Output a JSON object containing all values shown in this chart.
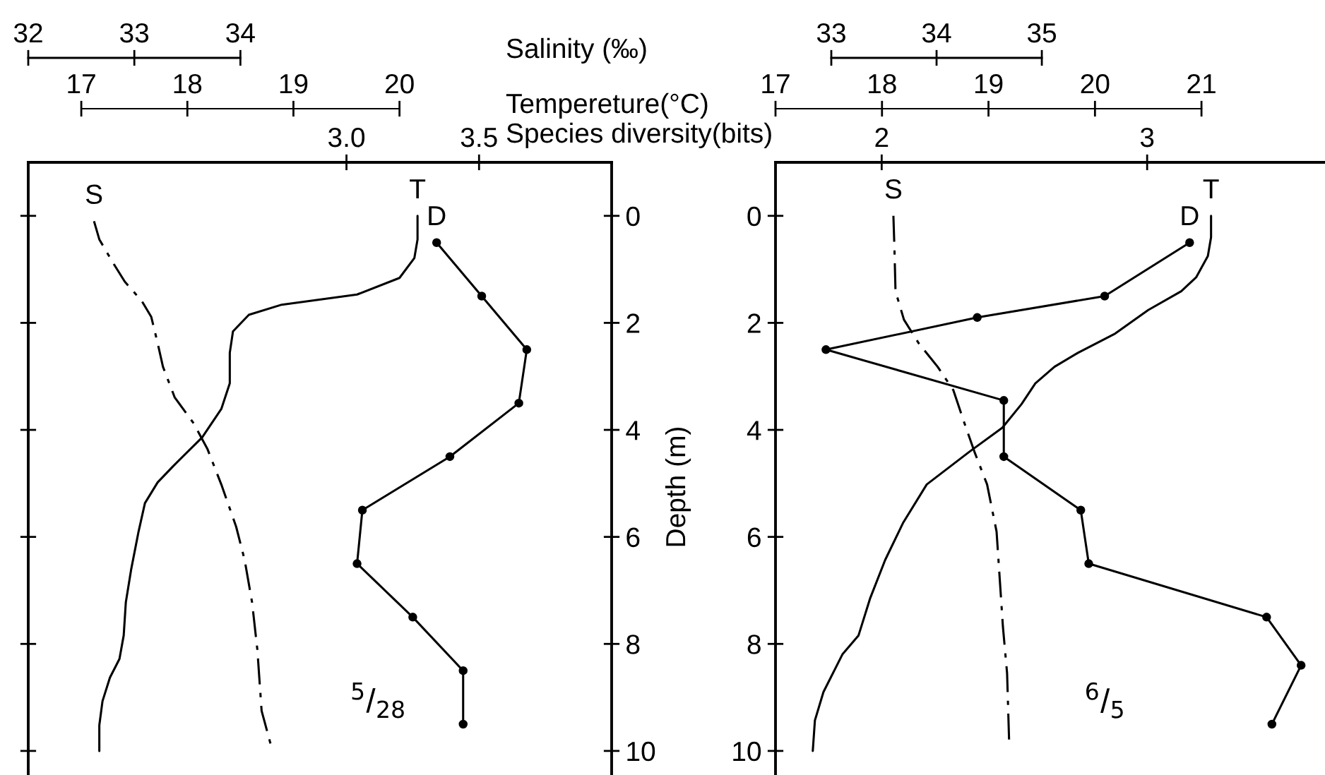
{
  "chart_data": [
    {
      "type": "line",
      "xlabel": "Species diversity(bits)",
      "x2label": "Tempereture(°C)",
      "xlim": [
        1.8,
        4.0
      ],
      "xticks": [
        {
          "value": 3,
          "label": "3.0"
        },
        3.5
      ],
      "x2lim": [
        16.5,
        22.0
      ],
      "x2ticks": [
        17,
        18,
        19,
        20
      ],
      "ylim": [
        10.45,
        -1
      ],
      "yticks": [
        0,
        2,
        4,
        6,
        8,
        10
      ],
      "annotations": [
        "$^{5}$/$_{28}$"
      ],
      "series": [
        {
          "name": "T",
          "color": "#000000",
          "axis": "x2",
          "line_style": "solid",
          "marker": "none",
          "x": [
            20.17,
            20.17,
            20.14,
            20.0,
            19.6,
            18.89,
            18.58,
            18.43,
            18.4,
            18.4,
            18.32,
            18.14,
            17.87,
            17.72,
            17.6,
            17.54,
            17.47,
            17.42,
            17.4,
            17.36,
            17.27,
            17.2,
            17.17,
            17.17
          ],
          "values": [
            0,
            0.44,
            0.79,
            1.16,
            1.47,
            1.66,
            1.85,
            2.16,
            2.56,
            3.13,
            3.61,
            4.14,
            4.67,
            4.98,
            5.37,
            5.9,
            6.61,
            7.22,
            7.84,
            8.28,
            8.63,
            9.07,
            9.52,
            10.0
          ]
        },
        {
          "name": "D",
          "color": "#000000",
          "line_style": "solid",
          "marker": "circle",
          "x": [
            3.34,
            3.51,
            3.68,
            3.65,
            3.39,
            3.06,
            3.04,
            3.25,
            3.44,
            3.44
          ],
          "values": [
            0.5,
            1.5,
            2.5,
            3.5,
            4.5,
            5.5,
            6.5,
            7.5,
            8.5,
            9.5
          ]
        }
      ]
    },
    {
      "type": "line",
      "xlabel": "Salinity (‰)",
      "tick_labels": "x",
      "xlim": [
        32,
        37.5
      ],
      "xticks": [
        32,
        33,
        34
      ],
      "ylim": [
        10.45,
        -1
      ],
      "series": [
        {
          "name": "S",
          "color": "#000000",
          "line_style": "dashed",
          "marker": "none",
          "x": [
            32.62,
            32.67,
            32.8,
            32.91,
            33.07,
            33.16,
            33.22,
            33.27,
            33.38,
            33.56,
            33.69,
            33.82,
            33.96,
            34.04,
            34.11,
            34.16,
            34.2,
            34.29
          ],
          "values": [
            0.1,
            0.44,
            0.88,
            1.23,
            1.59,
            1.89,
            2.38,
            2.82,
            3.39,
            3.88,
            4.36,
            5.02,
            5.81,
            6.43,
            7.22,
            8.11,
            9.25,
            9.91
          ]
        }
      ]
    },
    {
      "type": "line",
      "ylabel": "Depth (m)",
      "xlim": [
        1.6,
        3.67
      ],
      "xticks": [
        2,
        3
      ],
      "x2lim": [
        17.0,
        22.16
      ],
      "x2ticks": [
        17,
        18,
        19,
        20,
        21
      ],
      "ylim": [
        10.45,
        -1
      ],
      "yticks": [
        0,
        2,
        4,
        6,
        8,
        10
      ],
      "annotations": [
        "$^{6}$/$_{5}$"
      ],
      "series": [
        {
          "name": "T",
          "color": "#000000",
          "axis": "x2",
          "line_style": "solid",
          "marker": "none",
          "x": [
            21.09,
            21.09,
            21.06,
            20.95,
            20.81,
            20.5,
            20.19,
            19.84,
            19.62,
            19.44,
            19.31,
            19.13,
            18.82,
            18.42,
            18.2,
            18.03,
            17.89,
            17.78,
            17.63,
            17.45,
            17.37,
            17.35
          ],
          "values": [
            0,
            0.4,
            0.75,
            1.15,
            1.41,
            1.76,
            2.2,
            2.56,
            2.82,
            3.13,
            3.52,
            3.96,
            4.41,
            5.02,
            5.73,
            6.43,
            7.14,
            7.84,
            8.19,
            8.9,
            9.43,
            10.0
          ]
        },
        {
          "name": "D",
          "color": "#000000",
          "line_style": "solid",
          "marker": "circle",
          "x": [
            3.16,
            2.84,
            2.36,
            1.79,
            2.46,
            2.46,
            2.75,
            2.78,
            3.45,
            3.58,
            3.47
          ],
          "values": [
            0.5,
            1.5,
            1.9,
            2.5,
            3.45,
            4.5,
            5.5,
            6.5,
            7.5,
            8.4,
            9.5
          ]
        }
      ]
    },
    {
      "type": "line",
      "tick_labels": "x",
      "xlim": [
        32.47,
        37.69
      ],
      "xticks": [
        33,
        34,
        35
      ],
      "ylim": [
        10.45,
        -1
      ],
      "series": [
        {
          "name": "S",
          "color": "#000000",
          "line_style": "dashed",
          "marker": "none",
          "x": [
            33.59,
            33.6,
            33.61,
            33.69,
            33.83,
            34.01,
            34.16,
            34.25,
            34.36,
            34.48,
            34.57,
            34.6,
            34.63,
            34.67,
            34.69
          ],
          "values": [
            0,
            0.62,
            1.41,
            1.94,
            2.38,
            2.82,
            3.26,
            3.79,
            4.41,
            5.02,
            5.9,
            6.78,
            7.67,
            8.55,
            9.87
          ]
        }
      ]
    }
  ]
}
